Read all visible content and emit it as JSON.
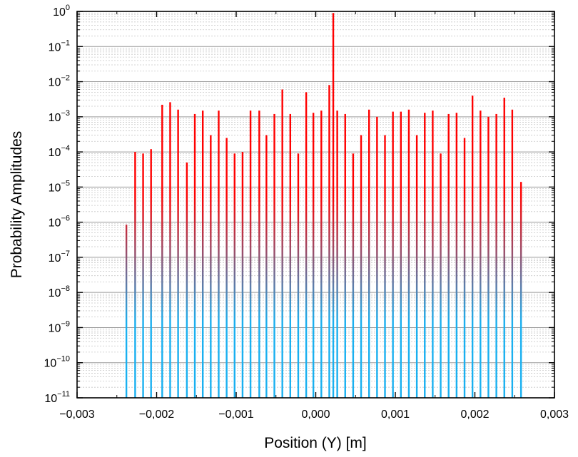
{
  "chart_data": {
    "type": "bar",
    "title": "",
    "xlabel": "Position (Y) [m]",
    "ylabel": "Probability Amplitudes",
    "xlim": [
      -0.003,
      0.003
    ],
    "ylim": [
      1e-11,
      1
    ],
    "x_ticks": [
      -0.003,
      -0.002,
      -0.001,
      0.0,
      0.001,
      0.002,
      0.003
    ],
    "x_tick_labels": [
      "−0,003",
      "−0,002",
      "−0,001",
      "0,000",
      "0,001",
      "0,002",
      "0,003"
    ],
    "y_scale": "log",
    "y_tick_exponents": [
      0,
      -1,
      -2,
      -3,
      -4,
      -5,
      -6,
      -7,
      -8,
      -9,
      -10,
      -11
    ],
    "y_tick_base": "10",
    "grid": true,
    "legend": "none",
    "bar_gradient": {
      "top": "#ff0000",
      "bottom": "#19b0f0"
    },
    "x": [
      -0.00238,
      -0.00227,
      -0.00217,
      -0.00207,
      -0.00193,
      -0.00183,
      -0.00173,
      -0.00162,
      -0.00152,
      -0.00142,
      -0.00132,
      -0.00122,
      -0.00112,
      -0.00102,
      -0.00092,
      -0.00082,
      -0.00071,
      -0.00062,
      -0.00052,
      -0.00042,
      -0.00032,
      -0.00022,
      -0.00012,
      -3e-05,
      7e-05,
      0.00017,
      0.00022,
      0.00027,
      0.00037,
      0.00047,
      0.00057,
      0.00067,
      0.00077,
      0.00087,
      0.00097,
      0.00107,
      0.00117,
      0.00127,
      0.00137,
      0.00147,
      0.00157,
      0.00167,
      0.00177,
      0.00187,
      0.00197,
      0.00207,
      0.00217,
      0.00227,
      0.00237,
      0.00247,
      0.00258
    ],
    "values": [
      8.5e-07,
      0.0001,
      9e-05,
      0.00012,
      0.0022,
      0.0026,
      0.0016,
      5e-05,
      0.0012,
      0.0015,
      0.0003,
      0.0015,
      0.00025,
      9e-05,
      0.0001,
      0.0015,
      0.0015,
      0.0003,
      0.0012,
      0.006,
      0.0012,
      9e-05,
      0.005,
      0.0013,
      0.0015,
      0.008,
      0.9,
      0.0015,
      0.0012,
      9e-05,
      0.0003,
      0.0016,
      0.001,
      0.0003,
      0.0014,
      0.0014,
      0.0016,
      0.0003,
      0.0013,
      0.0015,
      9e-05,
      0.0012,
      0.0013,
      0.00025,
      0.004,
      0.0015,
      0.001,
      0.0012,
      0.0035,
      0.0016,
      1.4e-05
    ]
  }
}
